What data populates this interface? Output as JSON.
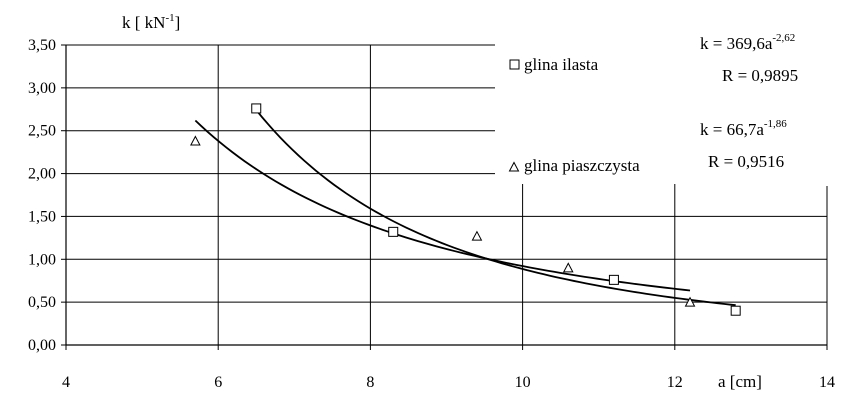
{
  "chart_data": {
    "type": "scatter",
    "ylabel": "k [ kN",
    "ylabel_sup": "-1",
    "ylabel_close": "]",
    "xlabel": "a [cm]",
    "xlim": [
      4,
      14
    ],
    "ylim": [
      0,
      3.5
    ],
    "x_ticks": [
      4,
      6,
      8,
      10,
      12,
      14
    ],
    "y_ticks": [
      0,
      0.5,
      1.0,
      1.5,
      2.0,
      2.5,
      3.0,
      3.5
    ],
    "x_tick_labels": [
      "4",
      "6",
      "8",
      "10",
      "12",
      "14"
    ],
    "y_tick_labels": [
      "0,00",
      "0,50",
      "1,00",
      "1,50",
      "2,00",
      "2,50",
      "3,00",
      "3,50"
    ],
    "grid": true,
    "legend_position": "right",
    "series": [
      {
        "name": "glina ilasta",
        "marker": "square",
        "x": [
          6.5,
          8.3,
          11.2,
          12.8
        ],
        "y": [
          2.76,
          1.32,
          0.76,
          0.4
        ],
        "fit": {
          "coef": 369.6,
          "exp": -2.62,
          "x_range": [
            6.5,
            12.8
          ],
          "equation": "k = 369,6a",
          "equation_sup": "-2,62",
          "r": "R = 0,9895"
        }
      },
      {
        "name": "glina piaszczysta",
        "marker": "triangle",
        "x": [
          5.7,
          9.4,
          10.6,
          12.2
        ],
        "y": [
          2.38,
          1.27,
          0.9,
          0.5
        ],
        "fit": {
          "coef": 66.7,
          "exp": -1.86,
          "x_range": [
            5.7,
            12.2
          ],
          "equation": "k = 66,7a",
          "equation_sup": "-1,86",
          "r": "R = 0,9516"
        }
      }
    ]
  }
}
